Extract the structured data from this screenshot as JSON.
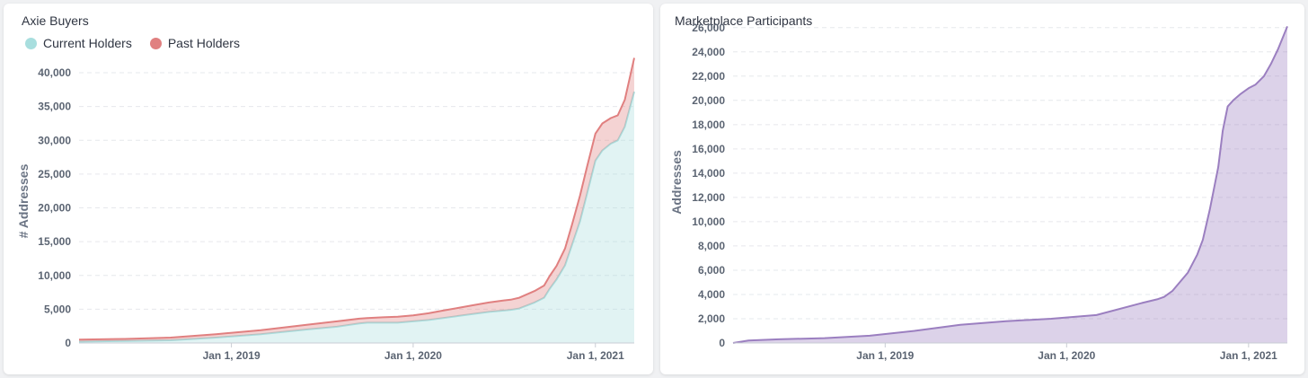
{
  "charts": [
    {
      "title": "Axie Buyers",
      "chart_data": {
        "type": "area",
        "stacked": true,
        "ylabel": "# Addresses",
        "xlabel": "",
        "ylim": [
          0,
          42000
        ],
        "yticks": [
          0,
          5000,
          10000,
          15000,
          20000,
          25000,
          30000,
          35000,
          40000
        ],
        "ytick_labels": [
          "0",
          "5,000",
          "10,000",
          "15,000",
          "20,000",
          "25,000",
          "30,000",
          "35,000",
          "40,000"
        ],
        "xlim": [
          "2018-03-01",
          "2021-03-20"
        ],
        "xticks": [
          "2019-01-01",
          "2020-01-01",
          "2021-01-01"
        ],
        "xtick_labels": [
          "Jan 1, 2019",
          "Jan 1, 2020",
          "Jan 1, 2021"
        ],
        "grid": "horizontal dashed",
        "legend": "top-left",
        "series": [
          {
            "name": "Current Holders",
            "color": "#a8dede",
            "x": [
              "2018-03-01",
              "2018-06-01",
              "2018-09-01",
              "2018-12-01",
              "2019-03-01",
              "2019-06-01",
              "2019-08-01",
              "2019-09-15",
              "2019-10-01",
              "2019-11-01",
              "2019-12-01",
              "2020-01-01",
              "2020-02-01",
              "2020-03-01",
              "2020-04-01",
              "2020-05-01",
              "2020-06-01",
              "2020-07-01",
              "2020-07-15",
              "2020-08-01",
              "2020-09-01",
              "2020-09-20",
              "2020-10-01",
              "2020-10-15",
              "2020-11-01",
              "2020-11-15",
              "2020-12-01",
              "2020-12-15",
              "2021-01-01",
              "2021-01-15",
              "2021-02-01",
              "2021-02-15",
              "2021-03-01",
              "2021-03-20"
            ],
            "values": [
              200,
              300,
              400,
              800,
              1300,
              2000,
              2400,
              2900,
              3000,
              3000,
              3000,
              3200,
              3400,
              3700,
              4000,
              4300,
              4600,
              4800,
              4900,
              5100,
              6000,
              6700,
              8000,
              9400,
              11500,
              14500,
              18000,
              22000,
              27000,
              28500,
              29500,
              30000,
              32000,
              37200
            ]
          },
          {
            "name": "Past Holders",
            "color": "#e08080",
            "x": [
              "2018-03-01",
              "2018-06-01",
              "2018-09-01",
              "2018-12-01",
              "2019-03-01",
              "2019-06-01",
              "2019-08-01",
              "2019-09-15",
              "2019-10-01",
              "2019-11-01",
              "2019-12-01",
              "2020-01-01",
              "2020-02-01",
              "2020-03-01",
              "2020-04-01",
              "2020-05-01",
              "2020-06-01",
              "2020-07-01",
              "2020-07-15",
              "2020-08-01",
              "2020-09-01",
              "2020-09-20",
              "2020-10-01",
              "2020-10-15",
              "2020-11-01",
              "2020-11-15",
              "2020-12-01",
              "2020-12-15",
              "2021-01-01",
              "2021-01-15",
              "2021-02-01",
              "2021-02-15",
              "2021-03-01",
              "2021-03-20"
            ],
            "values": [
              300,
              300,
              400,
              500,
              600,
              700,
              800,
              700,
              700,
              800,
              900,
              900,
              1000,
              1100,
              1200,
              1300,
              1400,
              1500,
              1500,
              1600,
              1700,
              1800,
              1900,
              2000,
              2500,
              3000,
              3800,
              4000,
              4000,
              4000,
              3800,
              3700,
              4000,
              5000
            ]
          }
        ]
      }
    },
    {
      "title": "Marketplace Participants",
      "chart_data": {
        "type": "area",
        "ylabel": "Addresses",
        "xlabel": "",
        "ylim": [
          0,
          26500
        ],
        "yticks": [
          0,
          2000,
          4000,
          6000,
          8000,
          10000,
          12000,
          14000,
          16000,
          18000,
          20000,
          22000,
          24000,
          26000
        ],
        "ytick_labels": [
          "0",
          "2,000",
          "4,000",
          "6,000",
          "8,000",
          "10,000",
          "12,000",
          "14,000",
          "16,000",
          "18,000",
          "20,000",
          "22,000",
          "24,000",
          "26,000"
        ],
        "xlim": [
          "2018-03-01",
          "2021-03-20"
        ],
        "xticks": [
          "2019-01-01",
          "2020-01-01",
          "2021-01-01"
        ],
        "xtick_labels": [
          "Jan 1, 2019",
          "Jan 1, 2020",
          "Jan 1, 2021"
        ],
        "grid": "horizontal dashed",
        "series": [
          {
            "color": "#9b7fc0",
            "x": [
              "2018-03-01",
              "2018-04-01",
              "2018-06-01",
              "2018-09-01",
              "2018-12-01",
              "2019-03-01",
              "2019-06-01",
              "2019-09-01",
              "2019-12-01",
              "2020-03-01",
              "2020-06-01",
              "2020-07-01",
              "2020-07-15",
              "2020-08-01",
              "2020-09-01",
              "2020-09-20",
              "2020-10-01",
              "2020-10-15",
              "2020-11-01",
              "2020-11-10",
              "2020-11-20",
              "2020-12-01",
              "2020-12-15",
              "2021-01-01",
              "2021-01-15",
              "2021-02-01",
              "2021-02-15",
              "2021-03-01",
              "2021-03-20"
            ],
            "values": [
              0,
              200,
              300,
              400,
              600,
              1000,
              1500,
              1800,
              2000,
              2300,
              3300,
              3600,
              3800,
              4300,
              5800,
              7300,
              8500,
              11000,
              14500,
              17500,
              19500,
              20000,
              20500,
              21000,
              21300,
              22000,
              23000,
              24200,
              26100
            ]
          }
        ]
      }
    }
  ]
}
